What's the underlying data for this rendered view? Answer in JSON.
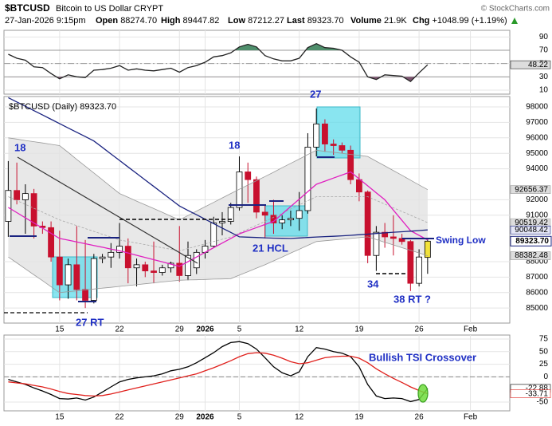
{
  "header": {
    "symbol": "$BTCUSD",
    "name": "Bitcoin to US Dollar",
    "exchange": "CRYPT",
    "copyright": "© StockCharts.com",
    "datetime": "27-Jan-2026 9:15pm",
    "quotes": [
      {
        "label": "Open",
        "value": "88274.70"
      },
      {
        "label": "High",
        "value": "89447.82"
      },
      {
        "label": "Low",
        "value": "87212.27"
      },
      {
        "label": "Last",
        "value": "89323.70"
      },
      {
        "label": "Volume",
        "value": "21.9K"
      },
      {
        "label": "Chg",
        "value": "+1048.99 (+1.19%)"
      }
    ]
  },
  "chart_data": [
    {
      "type": "line",
      "grid": true,
      "show_xtick_labels": false,
      "xlim": [
        -0.5,
        58.6
      ],
      "ylim": [
        4,
        100
      ],
      "yticks": [
        10,
        30,
        50,
        70,
        90
      ],
      "xticks": [
        {
          "value": 6,
          "label": "15"
        },
        {
          "value": 13,
          "label": "22"
        },
        {
          "value": 20,
          "label": "29"
        },
        {
          "value": 23,
          "label": "2026"
        },
        {
          "value": 27,
          "label": "5"
        },
        {
          "value": 34,
          "label": "12"
        },
        {
          "value": 41,
          "label": "19"
        },
        {
          "value": 48,
          "label": "26"
        },
        {
          "value": 54,
          "label": "Feb"
        }
      ],
      "overbought": 70,
      "oversold": 30,
      "overbought_color": "#4f8f6c",
      "oversold_color": "#7d5570",
      "series": [
        {
          "color": "#222222",
          "tag_color": "#dddddd",
          "values": [
            64,
            58,
            55,
            45,
            44,
            35,
            27,
            33,
            30,
            29,
            40,
            41,
            43,
            47,
            40,
            42,
            40,
            39,
            41,
            43,
            37,
            44,
            47,
            52,
            60,
            62,
            66,
            75,
            79,
            75,
            62,
            57,
            54,
            54,
            58,
            74,
            80,
            74,
            73,
            70,
            60,
            52,
            30,
            26,
            33,
            32,
            31,
            23,
            36,
            48.22
          ]
        }
      ]
    },
    {
      "type": "candlestick",
      "grid": true,
      "show_xtick_labels": true,
      "legend_text": "$BTCUSD (Daily) 89323.70",
      "last_label": "89323.70",
      "xlim": [
        -0.5,
        58.6
      ],
      "ylim": [
        84030,
        98670
      ],
      "yticks": [
        85000,
        86000,
        87000,
        88000,
        91000,
        92000,
        94000,
        95000,
        96000,
        97000,
        98000
      ],
      "xticks": [
        {
          "value": 6,
          "label": "15"
        },
        {
          "value": 13,
          "label": "22"
        },
        {
          "value": 20,
          "label": "29"
        },
        {
          "value": 23,
          "label": "2026"
        },
        {
          "value": 27,
          "label": "5"
        },
        {
          "value": 34,
          "label": "12"
        },
        {
          "value": 41,
          "label": "19"
        },
        {
          "value": 48,
          "label": "26"
        },
        {
          "value": 54,
          "label": "Feb"
        }
      ],
      "up_color": "#ffffff",
      "down_color": "#c8102e",
      "last_color": "#f2e23a",
      "band_color": "#e2e2e2",
      "open": [
        90600,
        92600,
        92000,
        92400,
        90300,
        90200,
        88300,
        86500,
        87800,
        86200,
        85500,
        88200,
        88300,
        88600,
        89000,
        87600,
        87800,
        87400,
        87300,
        87600,
        87900,
        87100,
        87600,
        88600,
        89000,
        90500,
        90600,
        91500,
        93800,
        93300,
        91200,
        91000,
        90500,
        90700,
        90800,
        91300,
        95400,
        96900,
        95600,
        95500,
        95200,
        93300,
        92500,
        88400,
        89900,
        89600,
        89500,
        89300,
        86600,
        88274.7
      ],
      "high": [
        94500,
        94400,
        93000,
        92700,
        90600,
        90600,
        90000,
        88200,
        90300,
        89400,
        88500,
        88500,
        89200,
        90500,
        89500,
        88200,
        88000,
        89300,
        87800,
        88000,
        90300,
        89300,
        88800,
        89400,
        90900,
        91200,
        91800,
        94800,
        94400,
        93500,
        91700,
        92000,
        91000,
        91300,
        92500,
        96300,
        97900,
        97200,
        95900,
        95700,
        95500,
        93700,
        92600,
        90300,
        90500,
        91000,
        89800,
        89400,
        88800,
        89447.82
      ],
      "low": [
        89600,
        91700,
        89800,
        89500,
        89800,
        88000,
        85500,
        85600,
        85500,
        85000,
        85300,
        87900,
        87600,
        88200,
        86600,
        86400,
        87000,
        86600,
        87100,
        87300,
        86700,
        86800,
        87200,
        88200,
        88900,
        89700,
        90400,
        91300,
        91800,
        90800,
        89500,
        89800,
        90100,
        90300,
        90000,
        91100,
        94800,
        95100,
        94900,
        95000,
        93000,
        91900,
        87900,
        87400,
        88900,
        88400,
        89100,
        86100,
        86400,
        87212.27
      ],
      "close": [
        92600,
        92000,
        92400,
        90300,
        90200,
        88300,
        86500,
        87800,
        86200,
        85500,
        88200,
        88300,
        88600,
        89000,
        87600,
        87800,
        87400,
        87300,
        87600,
        87900,
        87100,
        88400,
        88600,
        89000,
        90500,
        90600,
        91500,
        93800,
        93300,
        91200,
        91000,
        90500,
        90700,
        90800,
        91300,
        95400,
        96900,
        95600,
        95500,
        95200,
        93300,
        92500,
        88400,
        89900,
        89600,
        89500,
        89300,
        86600,
        88300,
        89323.7
      ],
      "series": [
        {
          "color": "#9a9a9a",
          "tag_color": "#dddddd",
          "values": [
            96000,
            95920,
            95830,
            95750,
            95670,
            95580,
            95500,
            95060,
            94610,
            94170,
            93730,
            93290,
            92840,
            92400,
            92160,
            91910,
            91670,
            91430,
            91190,
            90940,
            90700,
            90980,
            91270,
            91550,
            91830,
            92120,
            92400,
            92680,
            92950,
            93230,
            93500,
            93780,
            94070,
            94350,
            94630,
            94920,
            95200,
            95130,
            95070,
            95000,
            94930,
            94870,
            94800,
            94490,
            94190,
            93880,
            93580,
            93270,
            92960,
            92656.37
          ]
        },
        {
          "color": "#9a9a9a",
          "tag_color": "#dddddd",
          "values": [
            88300,
            87920,
            87530,
            87150,
            86770,
            86380,
            86000,
            86060,
            86110,
            86170,
            86230,
            86290,
            86340,
            86400,
            86460,
            86510,
            86570,
            86630,
            86690,
            86740,
            86800,
            86820,
            86830,
            86850,
            86870,
            86880,
            86900,
            87130,
            87350,
            87580,
            87800,
            88050,
            88300,
            88550,
            88800,
            89050,
            89300,
            89350,
            89400,
            89450,
            89500,
            89550,
            89600,
            89430,
            89250,
            89080,
            88900,
            88730,
            88560,
            88382.48
          ]
        },
        {
          "color": "#a8a8a8",
          "dashed": true,
          "tag_color": "#dddddd",
          "values": [
            92200,
            91950,
            91700,
            91450,
            91200,
            90950,
            90700,
            90510,
            90330,
            90140,
            89960,
            89770,
            89590,
            89400,
            89300,
            89200,
            89100,
            89000,
            88900,
            88800,
            88700,
            88850,
            89000,
            89150,
            89300,
            89450,
            89600,
            89850,
            90100,
            90350,
            90600,
            90870,
            91130,
            91400,
            91670,
            91930,
            92200,
            92200,
            92200,
            92200,
            92200,
            92200,
            92200,
            91960,
            91720,
            91480,
            91240,
            91000,
            90760,
            90519.42
          ]
        },
        {
          "color": "#e020c0",
          "values": [
            91500,
            91170,
            90830,
            90500,
            90170,
            89830,
            89500,
            89390,
            89270,
            89160,
            89040,
            88930,
            88810,
            88700,
            88560,
            88410,
            88270,
            88130,
            87990,
            87840,
            87700,
            88000,
            88300,
            88600,
            88900,
            89200,
            89500,
            89800,
            90000,
            90200,
            90400,
            90600,
            91080,
            91560,
            92040,
            92520,
            93000,
            93200,
            93400,
            93600,
            93800,
            93350,
            92900,
            92450,
            92000,
            91330,
            90670,
            90000,
            89700,
            89400
          ]
        },
        {
          "color": "#1a2380",
          "tag_color": "#e4e6f6",
          "values": [
            98600,
            98320,
            98040,
            97760,
            97480,
            97200,
            96920,
            96640,
            96360,
            96080,
            95800,
            95380,
            94960,
            94540,
            94120,
            93700,
            93280,
            92860,
            92440,
            92020,
            91600,
            91310,
            91030,
            90740,
            90460,
            90170,
            89890,
            89600,
            89580,
            89560,
            89540,
            89520,
            89510,
            89500,
            89530,
            89560,
            89590,
            89620,
            89640,
            89670,
            89700,
            89740,
            89780,
            89820,
            89860,
            89900,
            89930,
            89970,
            90010,
            90048.42
          ]
        }
      ],
      "annotations": [
        "18",
        "27",
        "18",
        "21 HCL",
        "34",
        "38 RT ?",
        "27 RT",
        "Swing Low"
      ]
    },
    {
      "type": "line",
      "grid": true,
      "show_xtick_labels": true,
      "zero_line": true,
      "annotation": "Bullish TSI Crossover",
      "xlim": [
        -0.5,
        58.6
      ],
      "ylim": [
        -67.4,
        82.9
      ],
      "yticks": [
        -50,
        0,
        25,
        50,
        75
      ],
      "xticks": [
        {
          "value": 6,
          "label": "15"
        },
        {
          "value": 13,
          "label": "22"
        },
        {
          "value": 20,
          "label": "29"
        },
        {
          "value": 23,
          "label": "2026"
        },
        {
          "value": 27,
          "label": "5"
        },
        {
          "value": 34,
          "label": "12"
        },
        {
          "value": 41,
          "label": "19"
        },
        {
          "value": 48,
          "label": "26"
        },
        {
          "value": 54,
          "label": "Feb"
        }
      ],
      "series": [
        {
          "color": "#000000",
          "tag_color": "#ffffff",
          "values": [
            -5,
            -10,
            -15,
            -22,
            -28,
            -35,
            -43,
            -44,
            -42,
            -46,
            -40,
            -30,
            -20,
            -10,
            -5,
            -2,
            0,
            2,
            6,
            12,
            15,
            20,
            28,
            38,
            48,
            60,
            68,
            70,
            66,
            55,
            38,
            20,
            8,
            2,
            10,
            40,
            58,
            55,
            50,
            47,
            40,
            20,
            -15,
            -38,
            -43,
            -42,
            -43,
            -49,
            -45,
            -22.88
          ]
        },
        {
          "color": "#e0201c",
          "tag_color": "#ffffff",
          "values": [
            -10,
            -12,
            -14,
            -17,
            -20,
            -24,
            -29,
            -33,
            -35,
            -37,
            -38,
            -37,
            -34,
            -30,
            -26,
            -22,
            -18,
            -14,
            -10,
            -6,
            -2,
            2,
            6,
            12,
            18,
            25,
            32,
            40,
            46,
            48,
            47,
            43,
            37,
            30,
            26,
            28,
            33,
            38,
            40,
            41,
            41,
            37,
            28,
            16,
            6,
            -3,
            -11,
            -20,
            -27,
            -33.71
          ]
        }
      ]
    }
  ]
}
